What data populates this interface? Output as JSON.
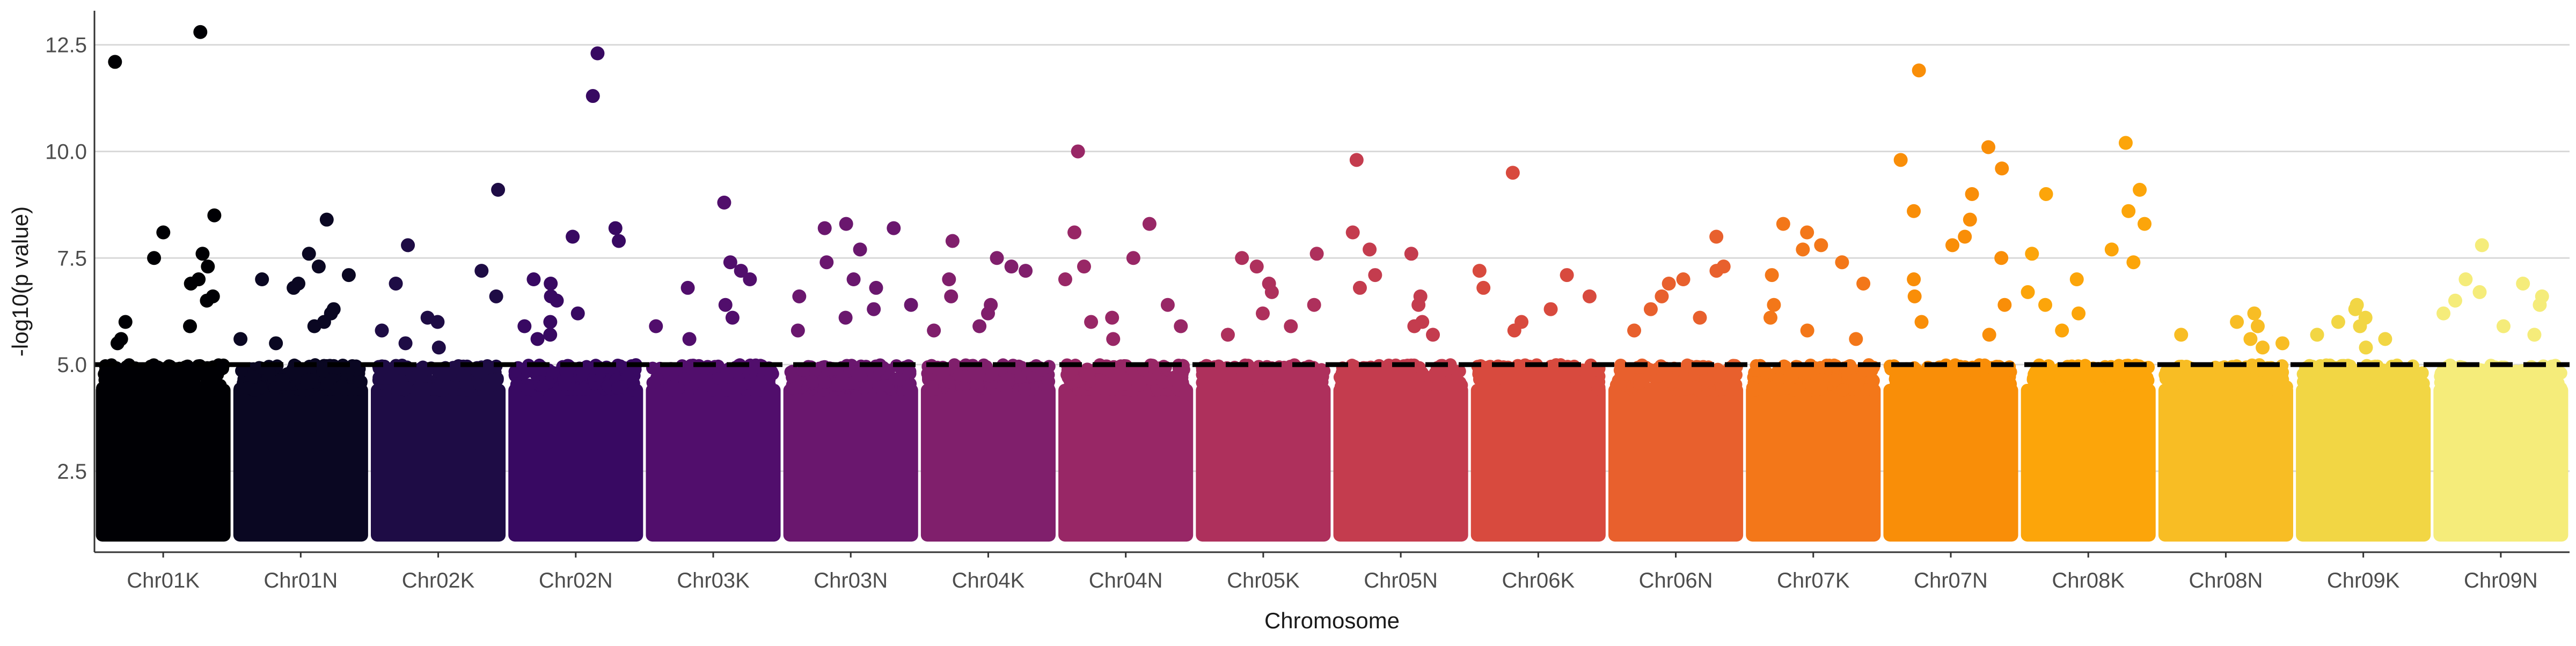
{
  "chart_data": {
    "type": "scatter",
    "subtype": "manhattan",
    "title": "",
    "xlabel": "Chromosome",
    "ylabel": "-log10(p value)",
    "ylim": [
      0.6,
      13.3
    ],
    "yticks": [
      2.5,
      5.0,
      7.5,
      10.0,
      12.5
    ],
    "ytick_labels": [
      "2.5",
      "5.0",
      "7.5",
      "10.0",
      "12.5"
    ],
    "grid": "major horizontal gridlines only",
    "legend": "none",
    "threshold": {
      "value": 5.0,
      "style": "dashed",
      "color": "#000000"
    },
    "categories": [
      "Chr01K",
      "Chr01N",
      "Chr02K",
      "Chr02N",
      "Chr03K",
      "Chr03N",
      "Chr04K",
      "Chr04N",
      "Chr05K",
      "Chr05N",
      "Chr06K",
      "Chr06N",
      "Chr07K",
      "Chr07N",
      "Chr08K",
      "Chr08N",
      "Chr09K",
      "Chr09N"
    ],
    "colors": [
      "#000004",
      "#0a0722",
      "#1e0c45",
      "#380962",
      "#510e6c",
      "#6a176e",
      "#801f6c",
      "#982766",
      "#ae305c",
      "#c43c4e",
      "#d84a3e",
      "#e8602d",
      "#f37719",
      "#f98e08",
      "#fca50a",
      "#f8bd24",
      "#f2d644",
      "#f5ec7a"
    ],
    "baseline_band": "every chromosome is filled solid with points from about 1.0 up to about 4.7",
    "top_points": [
      {
        "chromosome": "Chr01K",
        "values": [
          12.8,
          12.1,
          8.5,
          8.1,
          7.6,
          7.5,
          7.3,
          7.0,
          6.9,
          6.6,
          6.5,
          6.0,
          5.9,
          5.6,
          5.5
        ]
      },
      {
        "chromosome": "Chr01N",
        "values": [
          8.4,
          7.6,
          7.3,
          7.1,
          7.0,
          6.9,
          6.8,
          6.3,
          6.2,
          6.0,
          5.9,
          5.6,
          5.5
        ]
      },
      {
        "chromosome": "Chr02K",
        "values": [
          9.1,
          7.8,
          7.2,
          6.9,
          6.6,
          6.1,
          6.0,
          5.8,
          5.5,
          5.4
        ]
      },
      {
        "chromosome": "Chr02N",
        "values": [
          12.3,
          11.3,
          8.2,
          8.0,
          7.9,
          7.0,
          6.9,
          6.6,
          6.5,
          6.2,
          6.0,
          5.9,
          5.7,
          5.6
        ]
      },
      {
        "chromosome": "Chr03K",
        "values": [
          8.8,
          7.4,
          7.2,
          7.0,
          6.8,
          6.4,
          6.1,
          5.9,
          5.6
        ]
      },
      {
        "chromosome": "Chr03N",
        "values": [
          8.3,
          8.2,
          8.2,
          7.7,
          7.4,
          7.0,
          6.8,
          6.6,
          6.4,
          6.3,
          6.1,
          5.8
        ]
      },
      {
        "chromosome": "Chr04K",
        "values": [
          7.9,
          7.5,
          7.3,
          7.2,
          7.0,
          6.6,
          6.4,
          6.2,
          5.9,
          5.8
        ]
      },
      {
        "chromosome": "Chr04N",
        "values": [
          10.0,
          8.3,
          8.1,
          7.5,
          7.3,
          7.0,
          6.4,
          6.1,
          6.0,
          5.9,
          5.6
        ]
      },
      {
        "chromosome": "Chr05K",
        "values": [
          7.6,
          7.5,
          7.3,
          6.9,
          6.7,
          6.4,
          6.2,
          5.9,
          5.7
        ]
      },
      {
        "chromosome": "Chr05N",
        "values": [
          9.8,
          8.1,
          7.7,
          7.6,
          7.1,
          6.8,
          6.6,
          6.4,
          6.0,
          5.9,
          5.7
        ]
      },
      {
        "chromosome": "Chr06K",
        "values": [
          9.5,
          7.2,
          7.1,
          6.8,
          6.6,
          6.3,
          6.0,
          5.8
        ]
      },
      {
        "chromosome": "Chr06N",
        "values": [
          8.0,
          7.3,
          7.2,
          7.0,
          6.9,
          6.6,
          6.3,
          6.1,
          5.8
        ]
      },
      {
        "chromosome": "Chr07K",
        "values": [
          8.3,
          8.1,
          7.8,
          7.7,
          7.4,
          7.1,
          6.9,
          6.4,
          6.1,
          5.8,
          5.6
        ]
      },
      {
        "chromosome": "Chr07N",
        "values": [
          11.9,
          10.1,
          9.8,
          9.6,
          9.0,
          8.6,
          8.4,
          8.0,
          7.8,
          7.5,
          7.0,
          6.6,
          6.4,
          6.0,
          5.7
        ]
      },
      {
        "chromosome": "Chr08K",
        "values": [
          10.2,
          9.1,
          9.0,
          8.6,
          8.3,
          7.7,
          7.6,
          7.4,
          7.0,
          6.7,
          6.4,
          6.2,
          5.8
        ]
      },
      {
        "chromosome": "Chr08N",
        "values": [
          6.2,
          6.0,
          5.9,
          5.7,
          5.6,
          5.5,
          5.4
        ]
      },
      {
        "chromosome": "Chr09K",
        "values": [
          6.4,
          6.3,
          6.1,
          6.0,
          5.9,
          5.7,
          5.6,
          5.4
        ]
      },
      {
        "chromosome": "Chr09N",
        "values": [
          7.8,
          7.0,
          6.9,
          6.7,
          6.6,
          6.5,
          6.4,
          6.2,
          5.9,
          5.7
        ]
      }
    ]
  }
}
